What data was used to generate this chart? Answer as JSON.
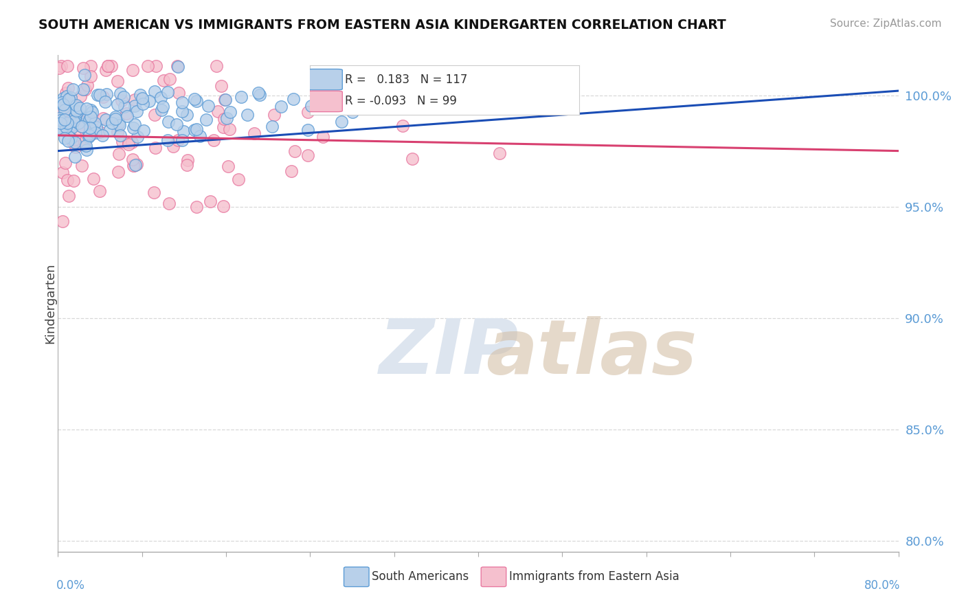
{
  "title": "SOUTH AMERICAN VS IMMIGRANTS FROM EASTERN ASIA KINDERGARTEN CORRELATION CHART",
  "source": "Source: ZipAtlas.com",
  "ylabel": "Kindergarten",
  "y_ticks": [
    80.0,
    85.0,
    90.0,
    95.0,
    100.0
  ],
  "x_range": [
    0.0,
    80.0
  ],
  "y_range": [
    79.5,
    101.8
  ],
  "legend_blue_label": "South Americans",
  "legend_pink_label": "Immigrants from Eastern Asia",
  "R_blue": 0.183,
  "N_blue": 117,
  "R_pink": -0.093,
  "N_pink": 99,
  "blue_color": "#b8d0ea",
  "blue_edge": "#5b9bd5",
  "pink_color": "#f5c0ce",
  "pink_edge": "#e878a0",
  "trend_blue": "#1a4db5",
  "trend_pink": "#d84070",
  "watermark_zip_color": "#dde5ef",
  "watermark_atlas_color": "#d4c0a8",
  "seed_blue": 42,
  "seed_pink": 99,
  "background_color": "#ffffff",
  "grid_color": "#d8d8d8",
  "tick_color": "#5b9bd5",
  "axis_color": "#aaaaaa"
}
